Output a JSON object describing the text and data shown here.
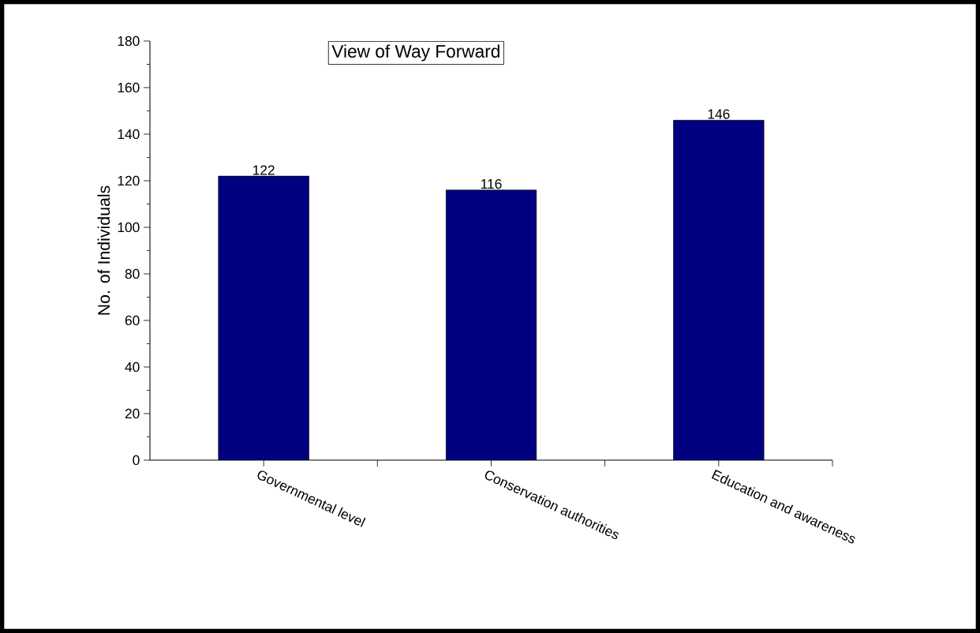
{
  "chart_data": {
    "type": "bar",
    "title": "View of Way Forward",
    "ylabel": "No. of Individuals",
    "categories": [
      "Governmental level",
      "Conservation authorities",
      "Education and awareness"
    ],
    "values": [
      122,
      116,
      146
    ],
    "color": "#000080",
    "data_labels": true,
    "ylim": [
      0,
      180
    ],
    "yticks": [
      0,
      20,
      40,
      60,
      80,
      100,
      120,
      140,
      160,
      180
    ],
    "grid": false
  }
}
